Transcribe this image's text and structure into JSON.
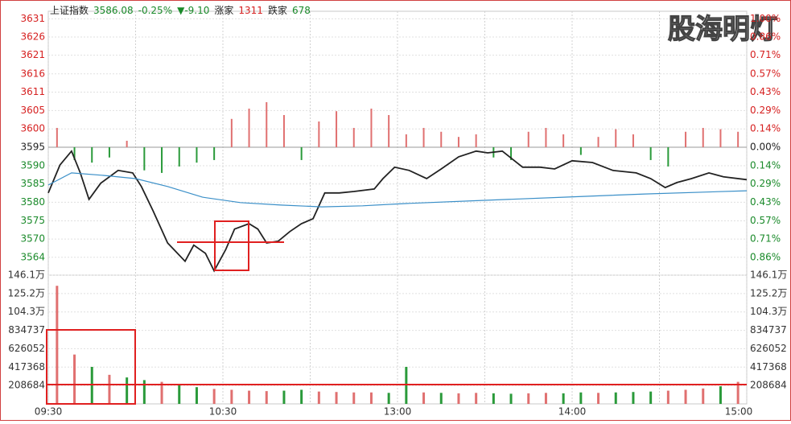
{
  "chart_data": {
    "type": "intraday",
    "header": [
      {
        "text": "上证指数",
        "color": "#222222"
      },
      {
        "text": "3586.08",
        "color": "#1a8a2a"
      },
      {
        "text": "-0.25%",
        "color": "#1a8a2a"
      },
      {
        "text": "▼-9.10",
        "color": "#1a8a2a"
      },
      {
        "text": "涨家",
        "color": "#222222"
      },
      {
        "text": "1311",
        "color": "#d62020"
      },
      {
        "text": "跌家",
        "color": "#222222"
      },
      {
        "text": "678",
        "color": "#1a8a2a"
      }
    ],
    "watermark": "股海明灯",
    "xlim": [
      0,
      240
    ],
    "xticks": [
      {
        "value": 0,
        "label": "09:30"
      },
      {
        "value": 60,
        "label": "10:30"
      },
      {
        "value": 120,
        "label": "13:00"
      },
      {
        "value": 180,
        "label": "14:00"
      },
      {
        "value": 240,
        "label": "15:00"
      }
    ],
    "price": {
      "ylim": [
        3559.4,
        3633.2
      ],
      "yticks": [
        {
          "value": 3631.1,
          "label": "3631"
        },
        {
          "value": 3626.0,
          "label": "3626"
        },
        {
          "value": 3620.9,
          "label": "3621"
        },
        {
          "value": 3615.7,
          "label": "3616"
        },
        {
          "value": 3610.6,
          "label": "3611"
        },
        {
          "value": 3605.45,
          "label": "3605"
        },
        {
          "value": 3600.3,
          "label": "3600"
        },
        {
          "value": 3595.18,
          "label": "3595"
        },
        {
          "value": 3590.0,
          "label": "3590"
        },
        {
          "value": 3584.9,
          "label": "3585"
        },
        {
          "value": 3579.8,
          "label": "3580"
        },
        {
          "value": 3574.6,
          "label": "3575"
        },
        {
          "value": 3569.5,
          "label": "3570"
        },
        {
          "value": 3564.4,
          "label": "3564"
        }
      ],
      "y2lim": [
        -0.995,
        1.057
      ],
      "y2_labels": [
        "1.00%",
        "0.86%",
        "0.71%",
        "0.57%",
        "0.43%",
        "0.29%",
        "0.14%",
        "0.00%",
        "0.14%",
        "0.29%",
        "0.43%",
        "0.57%",
        "0.71%",
        "0.86%"
      ],
      "series": [
        {
          "color": "#222222",
          "x": [
            0,
            4,
            8,
            11,
            14,
            18,
            24,
            29,
            32,
            36,
            41,
            47,
            50,
            54,
            57,
            61,
            64,
            69,
            72,
            75,
            79,
            83,
            87,
            91,
            95,
            100,
            105,
            112,
            115,
            119,
            124,
            130,
            135,
            141,
            147,
            151,
            156,
            163,
            169,
            174,
            180,
            187,
            194,
            202,
            207,
            212,
            216,
            221,
            227,
            232,
            240
          ],
          "values": [
            3582.4,
            3590.2,
            3594.1,
            3588.0,
            3580.6,
            3585.1,
            3588.7,
            3588.0,
            3584.2,
            3577.4,
            3568.4,
            3563.3,
            3567.8,
            3565.5,
            3560.6,
            3566.6,
            3572.3,
            3573.8,
            3572.3,
            3568.4,
            3568.9,
            3571.6,
            3573.8,
            3575.2,
            3582.4,
            3582.4,
            3582.8,
            3583.5,
            3586.4,
            3589.6,
            3588.7,
            3586.4,
            3589.1,
            3592.5,
            3594.1,
            3593.6,
            3594.1,
            3589.6,
            3589.6,
            3589.1,
            3591.4,
            3590.9,
            3588.7,
            3588.0,
            3586.4,
            3583.9,
            3585.3,
            3586.4,
            3588.0,
            3586.9,
            3586.1
          ]
        },
        {
          "color": "#3a8fc8",
          "x": [
            0,
            8,
            19,
            30,
            41,
            53,
            66,
            80,
            94,
            108,
            122,
            149,
            177,
            205,
            240
          ],
          "values": [
            3584.6,
            3588.0,
            3587.3,
            3586.4,
            3584.2,
            3581.2,
            3579.7,
            3579.0,
            3578.5,
            3578.8,
            3579.4,
            3580.3,
            3581.2,
            3582.1,
            3583.0
          ]
        }
      ]
    },
    "breadth": {
      "up_color": "#e07070",
      "down_color": "#2a9a3a",
      "x": [
        3,
        9,
        15,
        21,
        27,
        33,
        39,
        45,
        51,
        57,
        63,
        69,
        75,
        81,
        87,
        93,
        99,
        105,
        111,
        117,
        123,
        129,
        135,
        141,
        147,
        153,
        159,
        165,
        171,
        177,
        183,
        189,
        195,
        201,
        207,
        213,
        219,
        225,
        231,
        237
      ],
      "values": [
        0.15,
        -0.1,
        -0.12,
        -0.08,
        0.05,
        -0.18,
        -0.2,
        -0.15,
        -0.12,
        -0.1,
        0.22,
        0.3,
        0.35,
        0.25,
        -0.1,
        0.2,
        0.28,
        0.15,
        0.3,
        0.25,
        0.1,
        0.15,
        0.12,
        0.08,
        0.1,
        -0.08,
        -0.1,
        0.12,
        0.15,
        0.1,
        -0.06,
        0.08,
        0.14,
        0.1,
        -0.1,
        -0.15,
        0.12,
        0.15,
        0.14,
        0.12
      ]
    },
    "volume": {
      "ylim": [
        0,
        1460789
      ],
      "yticks": [
        208684,
        417368,
        626052,
        834737,
        {
          "value": 1043421,
          "label": "104.3万"
        },
        {
          "value": 1252105,
          "label": "125.2万"
        },
        {
          "value": 1460789,
          "label": "146.1万"
        }
      ],
      "x": [
        3,
        9,
        15,
        21,
        27,
        33,
        39,
        45,
        51,
        57,
        63,
        69,
        75,
        81,
        87,
        93,
        99,
        105,
        111,
        117,
        123,
        129,
        135,
        141,
        147,
        153,
        159,
        165,
        171,
        177,
        183,
        189,
        195,
        201,
        207,
        213,
        219,
        225,
        231,
        237
      ],
      "values": [
        1340000,
        560000,
        420000,
        330000,
        300000,
        270000,
        250000,
        210000,
        190000,
        170000,
        160000,
        150000,
        145000,
        150000,
        160000,
        140000,
        135000,
        130000,
        130000,
        125000,
        420000,
        130000,
        125000,
        120000,
        125000,
        120000,
        115000,
        120000,
        125000,
        120000,
        130000,
        125000,
        130000,
        135000,
        140000,
        150000,
        160000,
        175000,
        200000,
        250000
      ],
      "colors": [
        "#e07070",
        "#e07070",
        "#2a9a3a",
        "#e07070",
        "#2a9a3a",
        "#2a9a3a",
        "#e07070",
        "#2a9a3a",
        "#2a9a3a",
        "#e07070",
        "#e07070",
        "#e07070",
        "#e07070",
        "#2a9a3a",
        "#2a9a3a",
        "#e07070",
        "#e07070",
        "#e07070",
        "#e07070",
        "#2a9a3a",
        "#2a9a3a",
        "#e07070",
        "#2a9a3a",
        "#e07070",
        "#e07070",
        "#2a9a3a",
        "#2a9a3a",
        "#e07070",
        "#e07070",
        "#2a9a3a",
        "#2a9a3a",
        "#e07070",
        "#2a9a3a",
        "#2a9a3a",
        "#2a9a3a",
        "#e07070",
        "#e07070",
        "#e07070",
        "#2a9a3a",
        "#e07070"
      ]
    }
  }
}
